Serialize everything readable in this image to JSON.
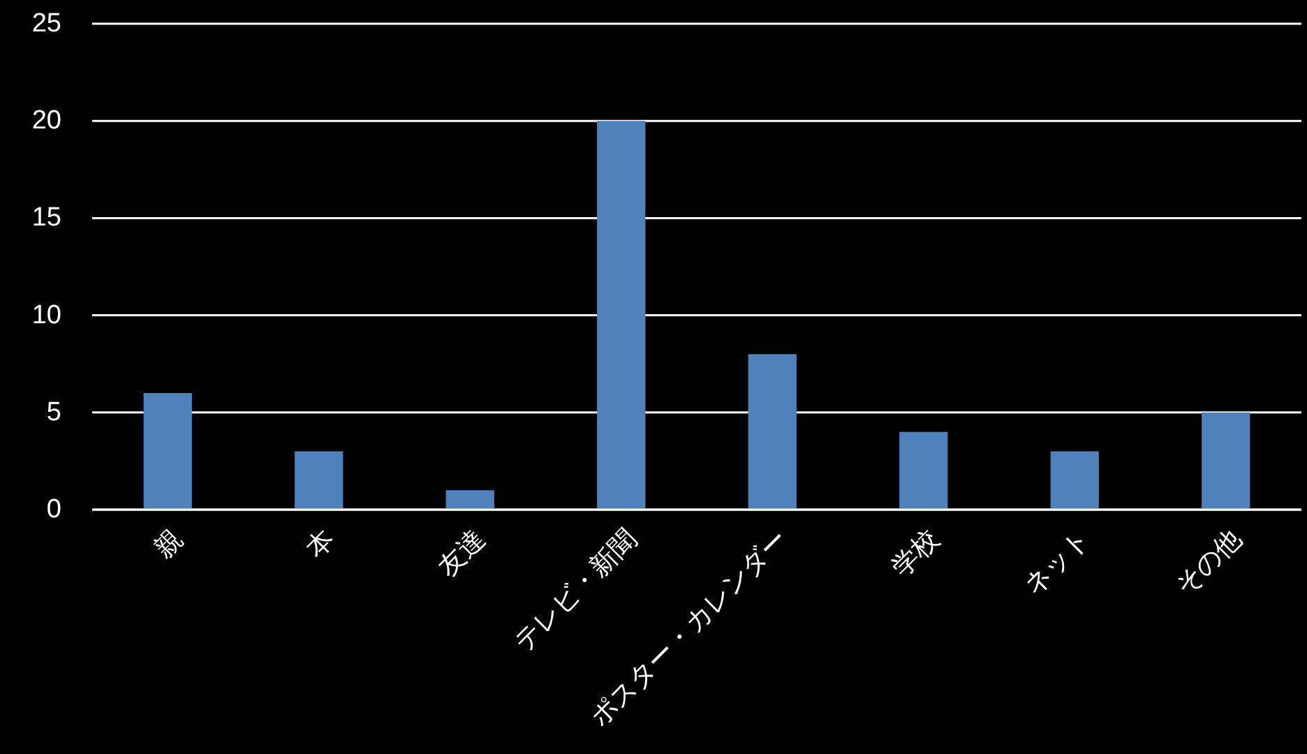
{
  "chart_data": {
    "type": "bar",
    "categories": [
      "親",
      "本",
      "友達",
      "テレビ・新聞",
      "ポスター・カレンダー",
      "学校",
      "ネット",
      "その他"
    ],
    "values": [
      6,
      3,
      1,
      20,
      8,
      4,
      3,
      5
    ],
    "color": "#4f81bd",
    "ylim": [
      0,
      25
    ],
    "yticks": [
      0,
      5,
      10,
      15,
      20,
      25
    ],
    "grid": "y"
  }
}
